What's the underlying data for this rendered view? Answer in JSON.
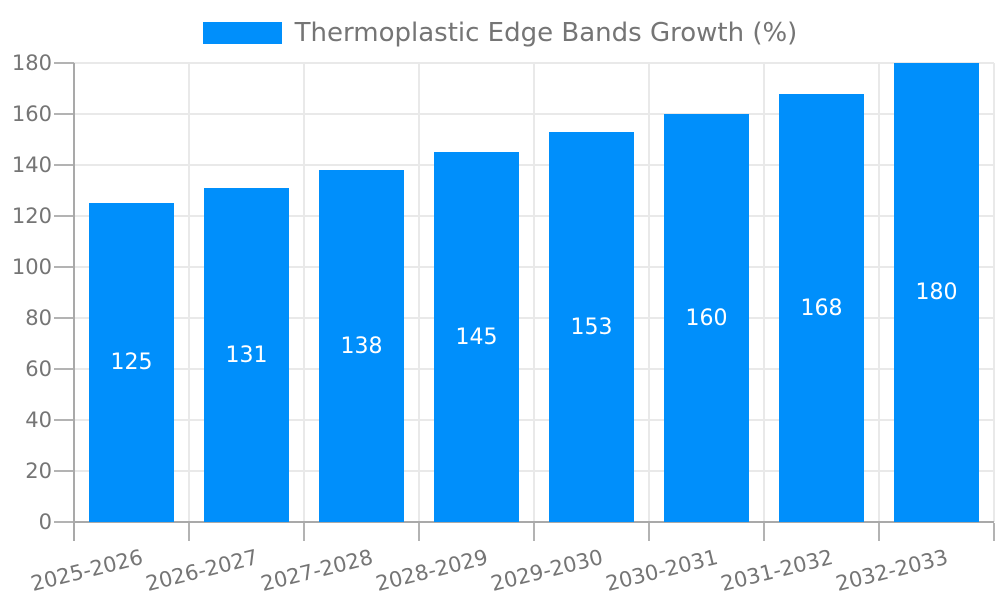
{
  "legend": {
    "label": "Thermoplastic Edge Bands Growth (%)",
    "swatch_color": "#008FFB"
  },
  "chart_data": {
    "type": "bar",
    "title": "Thermoplastic Edge Bands Growth (%)",
    "categories": [
      "2025-2026",
      "2026-2027",
      "2027-2028",
      "2028-2029",
      "2029-2030",
      "2030-2031",
      "2031-2032",
      "2032-2033"
    ],
    "values": [
      125,
      131,
      138,
      145,
      153,
      160,
      168,
      180
    ],
    "bar_labels": [
      "125",
      "131",
      "138",
      "145",
      "153",
      "160",
      "168",
      "180"
    ],
    "xlabel": "",
    "ylabel": "",
    "ylim": [
      0,
      180
    ],
    "ytick_step": 20,
    "ytick_labels": [
      "0",
      "20",
      "40",
      "60",
      "80",
      "100",
      "120",
      "140",
      "160",
      "180"
    ],
    "grid": true,
    "legend_position": "top",
    "series_color": "#008FFB",
    "value_label_color": "#ffffff",
    "text_color": "#757575",
    "grid_color": "#e9e9e9",
    "axis_color": "#a9a9a9",
    "tick_color": "#b3b3b3",
    "background": "#ffffff"
  }
}
